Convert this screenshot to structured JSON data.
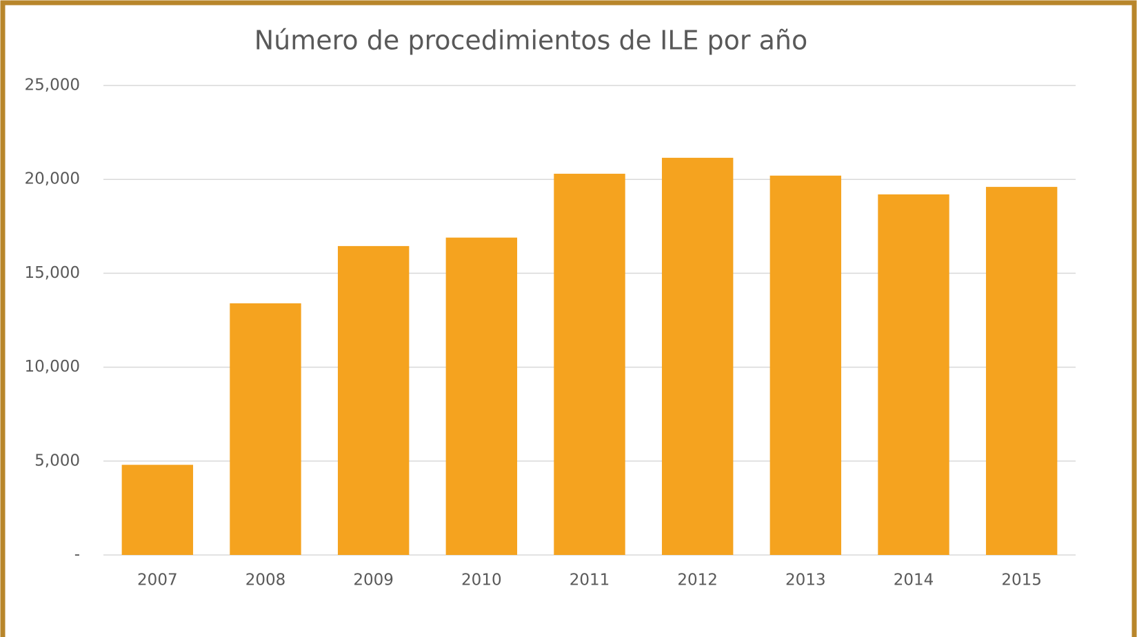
{
  "chart_data": {
    "type": "bar",
    "title": "Número de procedimientos de ILE por año",
    "categories": [
      "2007",
      "2008",
      "2009",
      "2010",
      "2011",
      "2012",
      "2013",
      "2014",
      "2015"
    ],
    "values": [
      4800,
      13400,
      16450,
      16900,
      20300,
      21150,
      20200,
      19200,
      19600
    ],
    "color": "#f5a31f",
    "ylim": [
      0,
      25000
    ],
    "yticks": [
      {
        "value": 0,
        "label": "-"
      },
      {
        "value": 5000,
        "label": "5,000"
      },
      {
        "value": 10000,
        "label": "10,000"
      },
      {
        "value": 15000,
        "label": "15,000"
      },
      {
        "value": 20000,
        "label": "20,000"
      },
      {
        "value": 25000,
        "label": "25,000"
      }
    ],
    "grid": true
  }
}
